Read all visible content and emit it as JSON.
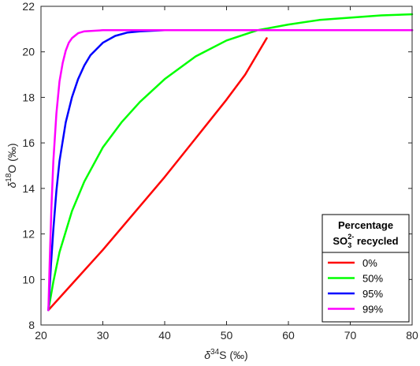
{
  "chart_data": {
    "type": "line",
    "xlabel": {
      "symbol": "δ",
      "sup": "34",
      "rest": "S (‰)"
    },
    "ylabel": {
      "symbol": "δ",
      "sup": "18",
      "rest": "O (‰)"
    },
    "xlim": [
      20,
      80
    ],
    "ylim": [
      8,
      22
    ],
    "xticks": [
      20,
      30,
      40,
      50,
      60,
      70,
      80
    ],
    "yticks": [
      8,
      10,
      12,
      14,
      16,
      18,
      20,
      22
    ],
    "grid": false,
    "legend": {
      "placement": "bottom-right",
      "title_line1": "Percentage",
      "title_line2_prefix": "SO",
      "title_line2_sub": "3",
      "title_line2_sup": "2-",
      "title_line2_suffix": " recycled"
    },
    "series": [
      {
        "name": "0%",
        "color": "#ff0000",
        "x": [
          21.2,
          25,
          30,
          35,
          40,
          45,
          50,
          53,
          56.5
        ],
        "y": [
          8.65,
          9.8,
          11.3,
          12.9,
          14.5,
          16.2,
          17.9,
          19.0,
          20.6
        ]
      },
      {
        "name": "50%",
        "color": "#00ff00",
        "x": [
          21.2,
          22,
          23,
          25,
          27,
          30,
          33,
          36,
          40,
          45,
          50,
          55,
          60,
          65,
          70,
          75,
          80
        ],
        "y": [
          8.65,
          9.9,
          11.2,
          13.0,
          14.3,
          15.8,
          16.9,
          17.8,
          18.8,
          19.8,
          20.5,
          20.95,
          21.2,
          21.4,
          21.5,
          21.6,
          21.65
        ]
      },
      {
        "name": "95%",
        "color": "#0000ff",
        "x": [
          21.2,
          21.6,
          22,
          22.5,
          23,
          24,
          25,
          26,
          27,
          28,
          30,
          32,
          34,
          36,
          40,
          50,
          60,
          70,
          80
        ],
        "y": [
          8.65,
          10.6,
          12.2,
          13.9,
          15.2,
          16.9,
          18.0,
          18.8,
          19.4,
          19.85,
          20.4,
          20.7,
          20.85,
          20.9,
          20.95,
          20.95,
          20.95,
          20.95,
          20.95
        ]
      },
      {
        "name": "99%",
        "color": "#ff00ff",
        "x": [
          21.2,
          21.4,
          21.7,
          22,
          22.5,
          23,
          23.5,
          24,
          24.5,
          25,
          26,
          27,
          30,
          40,
          50,
          60,
          70,
          80
        ],
        "y": [
          8.65,
          10.7,
          13.2,
          15.2,
          17.3,
          18.7,
          19.5,
          20.05,
          20.4,
          20.6,
          20.82,
          20.9,
          20.95,
          20.95,
          20.95,
          20.95,
          20.95,
          20.95
        ]
      }
    ]
  }
}
